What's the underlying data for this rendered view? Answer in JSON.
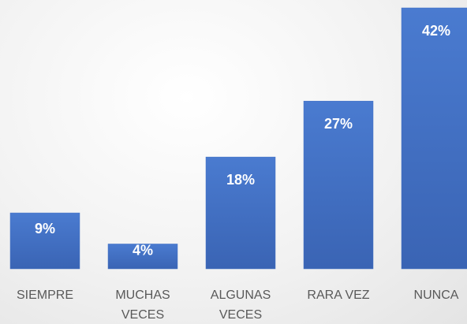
{
  "chart_data": {
    "type": "bar",
    "categories": [
      "SIEMPRE",
      "MUCHAS VECES",
      "ALGUNAS VECES",
      "RARA VEZ",
      "NUNCA"
    ],
    "values": [
      9,
      4,
      18,
      27,
      42
    ],
    "value_labels": [
      "9%",
      "4%",
      "18%",
      "27%",
      "42%"
    ],
    "color": "#4472c4"
  }
}
